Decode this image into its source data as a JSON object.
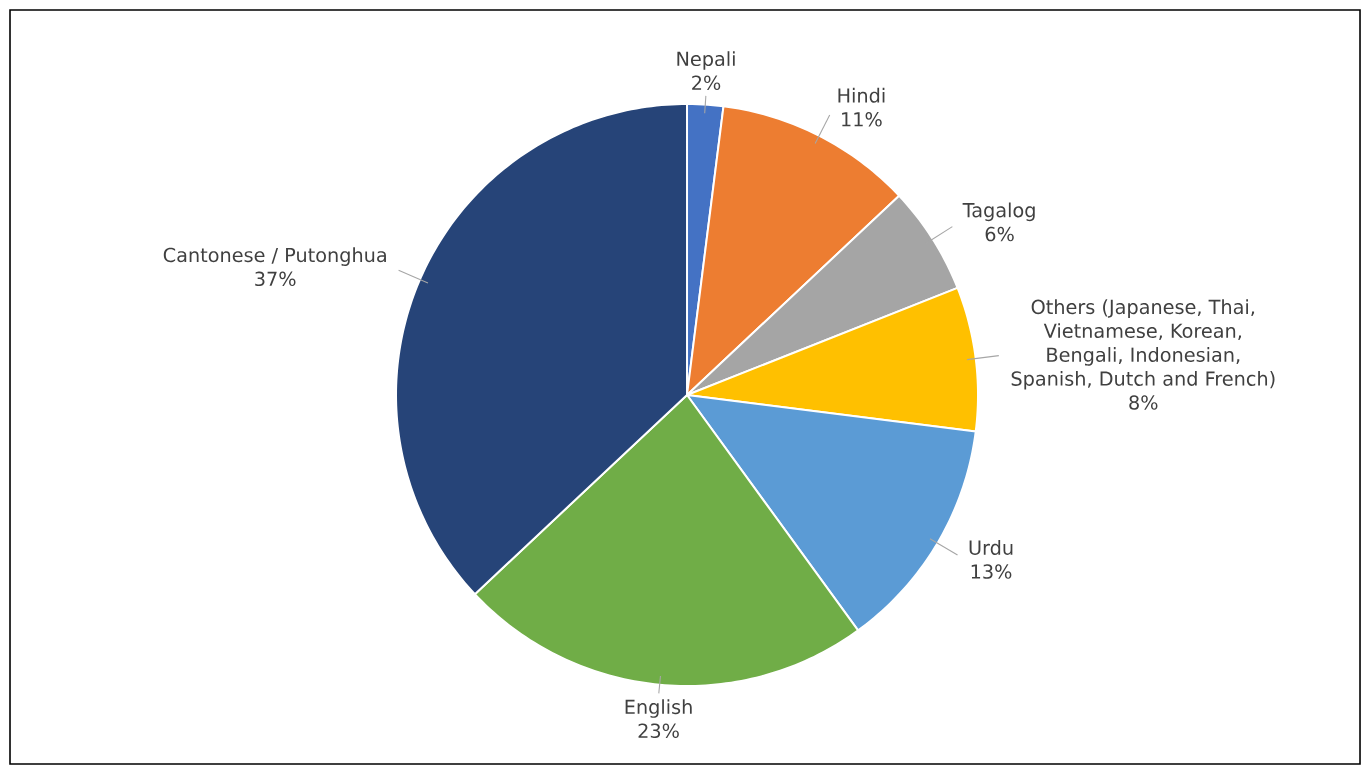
{
  "chart_data": {
    "type": "pie",
    "categories": [
      "Nepali",
      "Hindi",
      "Tagalog",
      "Others (Japanese, Thai, Vietnamese, Korean, Bengali, Indonesian, Spanish, Dutch and French)",
      "Urdu",
      "English",
      "Cantonese / Putonghua"
    ],
    "values": [
      2,
      11,
      6,
      8,
      13,
      23,
      37
    ],
    "colors": [
      "#4472c4",
      "#ed7d31",
      "#a5a5a5",
      "#ffc000",
      "#5b9bd5",
      "#70ad47",
      "#264478"
    ],
    "value_labels": [
      "2%",
      "11%",
      "6%",
      "8%",
      "13%",
      "23%",
      "37%"
    ]
  }
}
